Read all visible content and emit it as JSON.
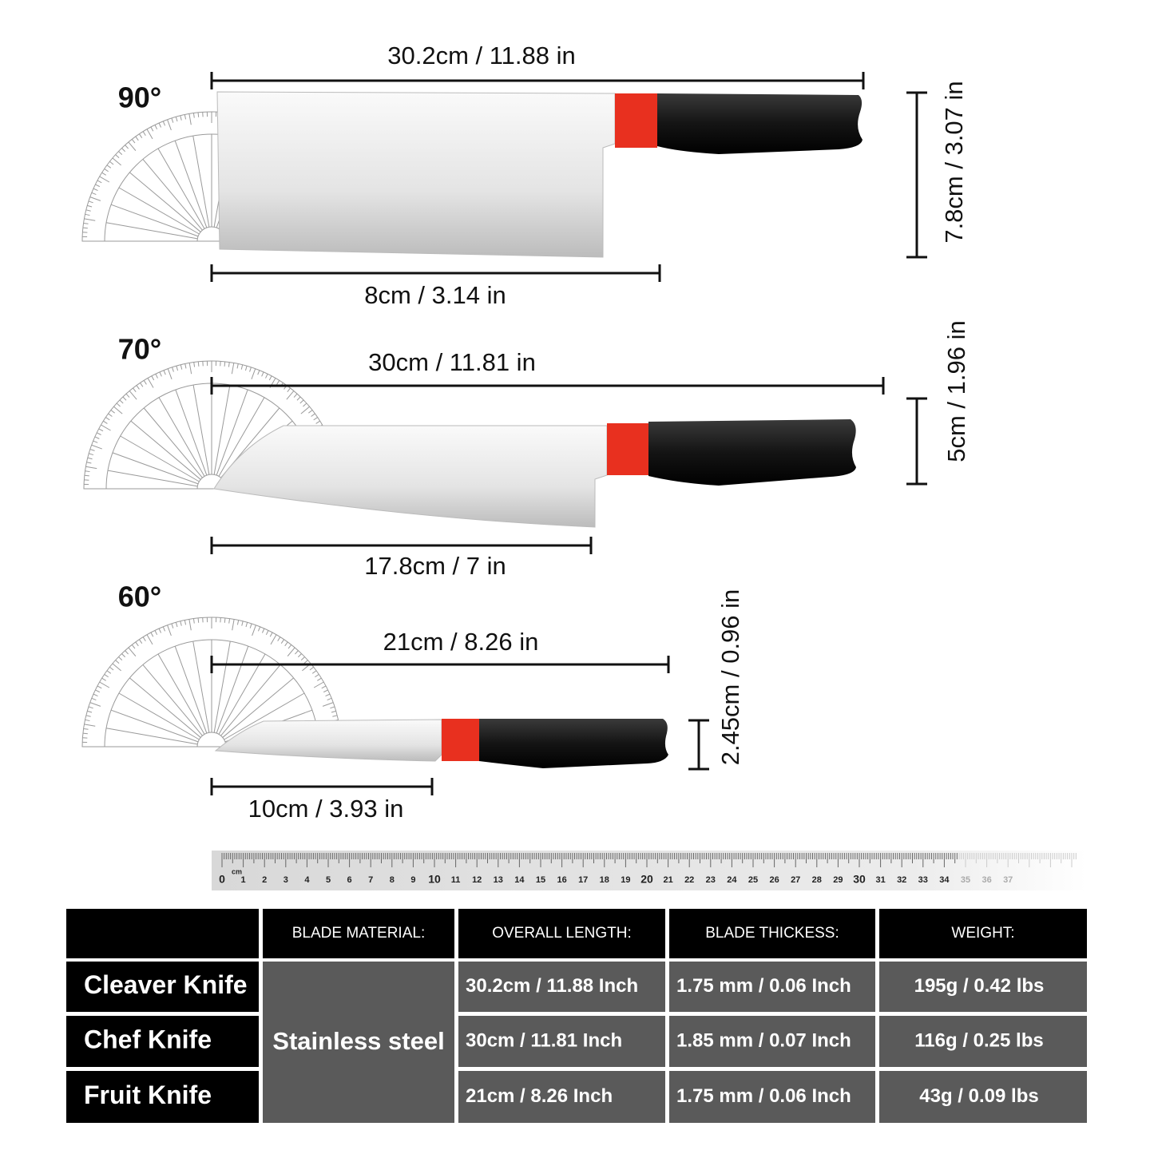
{
  "knives": [
    {
      "angle": "90°",
      "length": "30.2cm / 11.88 in",
      "blade_length": "8cm / 3.14 in",
      "height": "7.8cm / 3.07 in"
    },
    {
      "angle": "70°",
      "length": "30cm / 11.81 in",
      "blade_length": "17.8cm / 7 in",
      "height": "5cm / 1.96 in"
    },
    {
      "angle": "60°",
      "length": "21cm / 8.26 in",
      "blade_length": "10cm / 3.93 in",
      "height": "2.45cm / 0.96 in"
    }
  ],
  "ruler": {
    "unit": "cm",
    "labels": [
      0,
      1,
      2,
      3,
      4,
      5,
      6,
      7,
      8,
      9,
      10,
      11,
      12,
      13,
      14,
      15,
      16,
      17,
      18,
      19,
      20,
      21,
      22,
      23,
      24,
      25,
      26,
      27,
      28,
      29,
      30,
      31,
      32,
      33,
      34,
      35,
      36,
      37
    ]
  },
  "table": {
    "header": [
      "BLADE MATERIAL:",
      "OVERALL LENGTH:",
      "BLADE THICKESS:",
      "WEIGHT:"
    ],
    "material": "Stainless steel",
    "rows": [
      [
        "Cleaver Knife",
        "30.2cm / 11.88 Inch",
        "1.75 mm / 0.06 Inch",
        "195g / 0.42 lbs"
      ],
      [
        "Chef Knife",
        "30cm / 11.81 Inch",
        "1.85 mm / 0.07 Inch",
        "116g / 0.25 lbs"
      ],
      [
        "Fruit Knife",
        "21cm / 8.26 Inch",
        "1.75 mm / 0.06 Inch",
        "43g / 0.09 lbs"
      ]
    ]
  }
}
